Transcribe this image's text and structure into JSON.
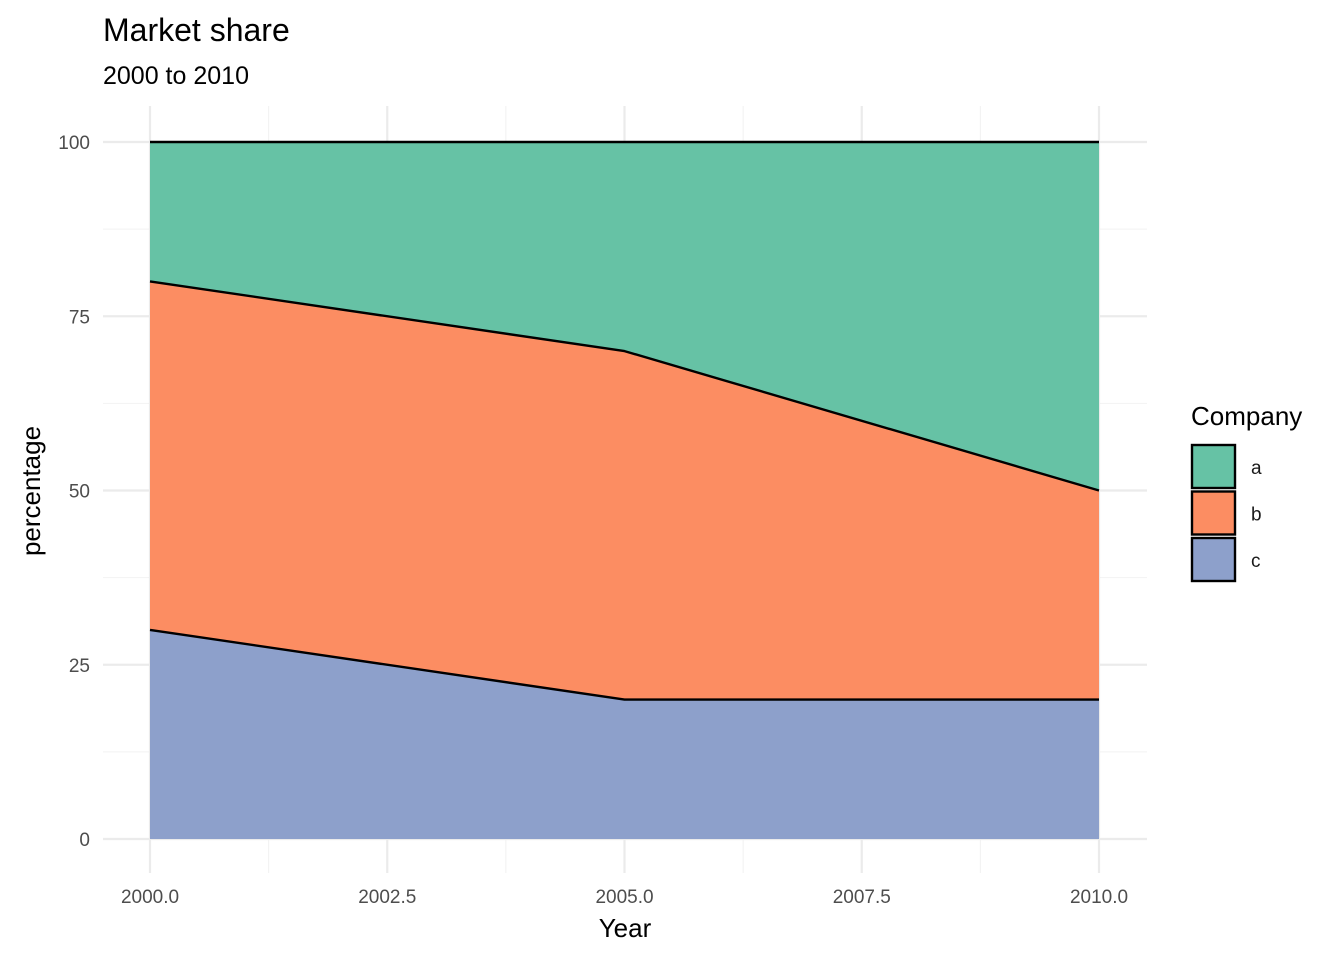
{
  "chart_data": {
    "type": "area",
    "stacked": true,
    "title": "Market share",
    "subtitle": "2000 to 2010",
    "xlabel": "Year",
    "ylabel": "percentage",
    "x": [
      2000,
      2005,
      2010
    ],
    "xlim": [
      2000,
      2010
    ],
    "ylim": [
      0,
      100
    ],
    "x_ticks": [
      2000,
      2002.5,
      2005,
      2007.5,
      2010
    ],
    "x_tick_labels": [
      "2000.0",
      "2002.5",
      "2005.0",
      "2007.5",
      "2010.0"
    ],
    "y_ticks": [
      0,
      25,
      50,
      75,
      100
    ],
    "y_tick_labels": [
      "0",
      "25",
      "50",
      "75",
      "100"
    ],
    "grid": true,
    "legend": {
      "title": "Company",
      "position": "right"
    },
    "series": [
      {
        "name": "a",
        "values": [
          20,
          30,
          50
        ],
        "color": "#66c2a5"
      },
      {
        "name": "b",
        "values": [
          50,
          50,
          30
        ],
        "color": "#fc8d62"
      },
      {
        "name": "c",
        "values": [
          30,
          20,
          20
        ],
        "color": "#8da0cb"
      }
    ]
  }
}
